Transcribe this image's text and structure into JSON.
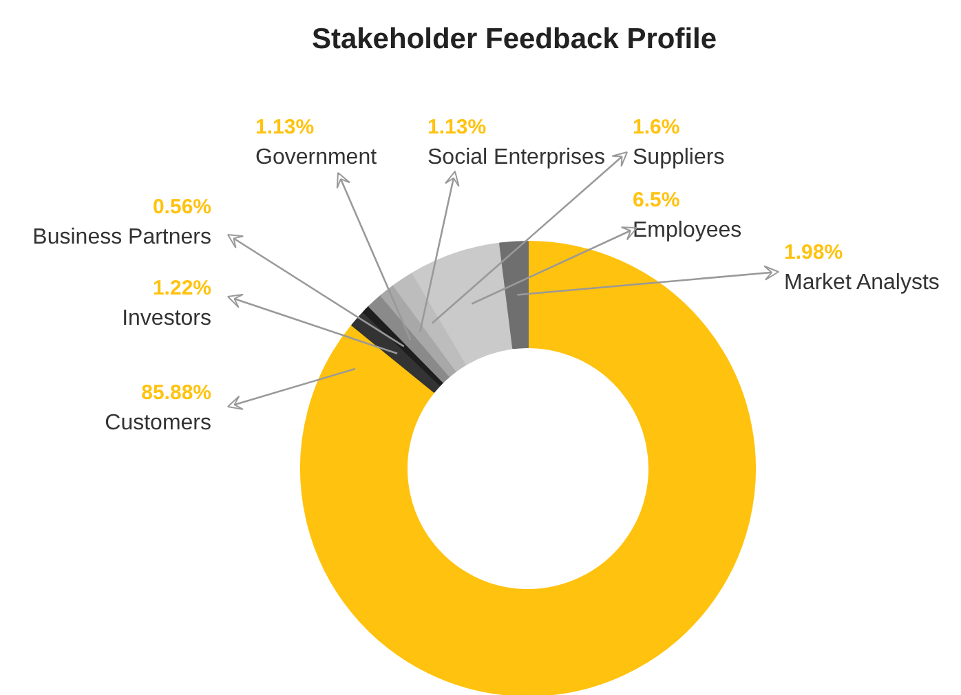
{
  "chart_data": {
    "type": "donut",
    "title": "Stakeholder Feedback Profile",
    "categories": [
      "Customers",
      "Investors",
      "Business Partners",
      "Government",
      "Social Enterprises",
      "Suppliers",
      "Employees",
      "Market Analysts"
    ],
    "values": [
      85.88,
      1.22,
      0.56,
      1.13,
      1.13,
      1.6,
      6.5,
      1.98
    ],
    "value_labels": [
      "85.88%",
      "1.22%",
      "0.56%",
      "1.13%",
      "1.13%",
      "1.6%",
      "6.5%",
      "1.98%"
    ],
    "colors": [
      "#ffc20e",
      "#333333",
      "#1e1e1e",
      "#8a8a8a",
      "#a8a8a8",
      "#bdbdbd",
      "#cacaca",
      "#6f6f6f"
    ]
  }
}
